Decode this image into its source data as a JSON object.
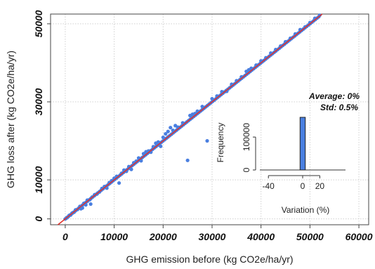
{
  "chart_data": {
    "type": "scatter",
    "xlabel": "GHG emission before (kg CO2e/ha/yr)",
    "ylabel": "GHG loss after (kg CO2e/ha/yr)",
    "xlim": [
      -3000,
      62000
    ],
    "ylim": [
      -1500,
      52500
    ],
    "x_ticks": [
      0,
      10000,
      20000,
      30000,
      40000,
      50000,
      60000
    ],
    "x_tick_labels": [
      "0",
      "10000",
      "20000",
      "30000",
      "40000",
      "50000",
      "60000"
    ],
    "y_ticks": [
      0,
      10000,
      30000,
      50000
    ],
    "y_tick_labels": [
      "0",
      "10000",
      "30000",
      "50000"
    ],
    "grid": true,
    "point_color": "#4a7fe0",
    "line_color": "#e0302a",
    "reference_line": {
      "slope": 1,
      "intercept": 0
    },
    "points": [
      [
        200,
        150
      ],
      [
        500,
        450
      ],
      [
        800,
        900
      ],
      [
        1100,
        1000
      ],
      [
        1400,
        1500
      ],
      [
        1800,
        1700
      ],
      [
        2100,
        2300
      ],
      [
        2500,
        2400
      ],
      [
        3000,
        3200
      ],
      [
        3200,
        2600
      ],
      [
        3500,
        2800
      ],
      [
        3800,
        4000
      ],
      [
        4200,
        3600
      ],
      [
        4500,
        4800
      ],
      [
        5000,
        4900
      ],
      [
        5200,
        3800
      ],
      [
        5500,
        5600
      ],
      [
        6000,
        6200
      ],
      [
        6500,
        6400
      ],
      [
        7000,
        6900
      ],
      [
        7500,
        7800
      ],
      [
        8000,
        8300
      ],
      [
        8500,
        7900
      ],
      [
        9000,
        9300
      ],
      [
        9500,
        9800
      ],
      [
        10000,
        10400
      ],
      [
        10500,
        10900
      ],
      [
        11000,
        9200
      ],
      [
        11500,
        11700
      ],
      [
        12000,
        12500
      ],
      [
        12500,
        12200
      ],
      [
        13000,
        13400
      ],
      [
        13500,
        12700
      ],
      [
        14000,
        14400
      ],
      [
        14500,
        14800
      ],
      [
        15000,
        15600
      ],
      [
        15500,
        14900
      ],
      [
        16000,
        16700
      ],
      [
        16500,
        17200
      ],
      [
        17000,
        17400
      ],
      [
        17500,
        17100
      ],
      [
        18000,
        18500
      ],
      [
        18500,
        19400
      ],
      [
        19000,
        19700
      ],
      [
        19500,
        18600
      ],
      [
        20000,
        20900
      ],
      [
        20500,
        21800
      ],
      [
        21000,
        22400
      ],
      [
        21500,
        23400
      ],
      [
        22000,
        22700
      ],
      [
        22500,
        23900
      ],
      [
        23000,
        23500
      ],
      [
        24000,
        24600
      ],
      [
        25000,
        15000
      ],
      [
        25500,
        26500
      ],
      [
        26000,
        26800
      ],
      [
        26500,
        27000
      ],
      [
        27000,
        27600
      ],
      [
        28000,
        28800
      ],
      [
        29000,
        20000
      ],
      [
        30000,
        30800
      ],
      [
        31000,
        31500
      ],
      [
        32000,
        32600
      ],
      [
        33000,
        32700
      ],
      [
        34000,
        34500
      ],
      [
        35000,
        35400
      ],
      [
        36000,
        36400
      ],
      [
        37000,
        37800
      ],
      [
        37500,
        38200
      ],
      [
        38000,
        38600
      ],
      [
        39000,
        39400
      ],
      [
        40000,
        40500
      ],
      [
        41000,
        41300
      ],
      [
        42000,
        42500
      ],
      [
        43000,
        43400
      ],
      [
        44000,
        44300
      ],
      [
        45000,
        45400
      ],
      [
        46000,
        46300
      ],
      [
        47000,
        47400
      ],
      [
        48000,
        48500
      ],
      [
        49000,
        49200
      ],
      [
        50000,
        50300
      ],
      [
        51000,
        51400
      ],
      [
        52000,
        52200
      ]
    ],
    "inset": {
      "type": "histogram",
      "xlabel": "Variation (%)",
      "ylabel": "Frequency",
      "xlim": [
        -50,
        50
      ],
      "ylim": [
        0,
        175000
      ],
      "x_ticks": [
        -40,
        0,
        20
      ],
      "x_tick_labels": [
        "-40",
        "0",
        "20"
      ],
      "y_ticks": [
        0,
        100000
      ],
      "y_tick_labels": [
        "0",
        "100000"
      ],
      "bins": [
        {
          "start": -1,
          "end": 1,
          "count": 160000
        }
      ],
      "bar_color": "#4a7fe0",
      "annotations": [
        "Average: 0%",
        "Std: 0.5%"
      ]
    }
  }
}
